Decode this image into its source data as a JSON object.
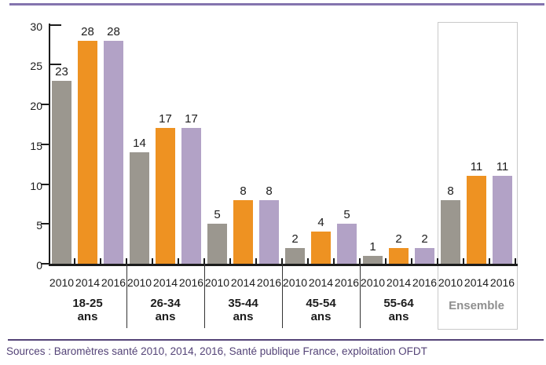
{
  "chart_data": {
    "type": "bar",
    "title": "",
    "categories": [
      "18-25 ans",
      "26-34 ans",
      "35-44 ans",
      "45-54 ans",
      "55-64 ans",
      "Ensemble"
    ],
    "category_label_lines": [
      [
        "18-25",
        "ans"
      ],
      [
        "26-34",
        "ans"
      ],
      [
        "35-44",
        "ans"
      ],
      [
        "45-54",
        "ans"
      ],
      [
        "55-64",
        "ans"
      ],
      [
        "Ensemble"
      ]
    ],
    "x_sublabels": [
      "2010",
      "2014",
      "2016"
    ],
    "series": [
      {
        "name": "2010",
        "color": "#9b978f",
        "values": [
          23,
          14,
          5,
          2,
          1,
          8
        ]
      },
      {
        "name": "2014",
        "color": "#ee9222",
        "values": [
          28,
          17,
          8,
          4,
          2,
          11
        ]
      },
      {
        "name": "2016",
        "color": "#b2a2c6",
        "values": [
          28,
          17,
          8,
          5,
          2,
          11
        ]
      }
    ],
    "ylim": [
      0,
      30
    ],
    "yticks": [
      0,
      5,
      10,
      15,
      20,
      25,
      30
    ],
    "bar_value_labels": true,
    "grid": false,
    "legend": false,
    "highlighted_group": "Ensemble",
    "highlighted_group_index": 5
  },
  "footer": {
    "source_text": "Sources : Baromètres santé 2010, 2014, 2016, Santé publique France, exploitation OFDT"
  },
  "colors": {
    "bar_2010": "#9b978f",
    "bar_2014": "#ee9222",
    "bar_2016": "#b2a2c6",
    "axis": "#1c1c1c",
    "top_rule": "#8474ae",
    "bottom_rule": "#544377",
    "source_text": "#544377",
    "ensemble_box_border": "#c9c9c9",
    "ensemble_label": "#8f8f8f"
  }
}
